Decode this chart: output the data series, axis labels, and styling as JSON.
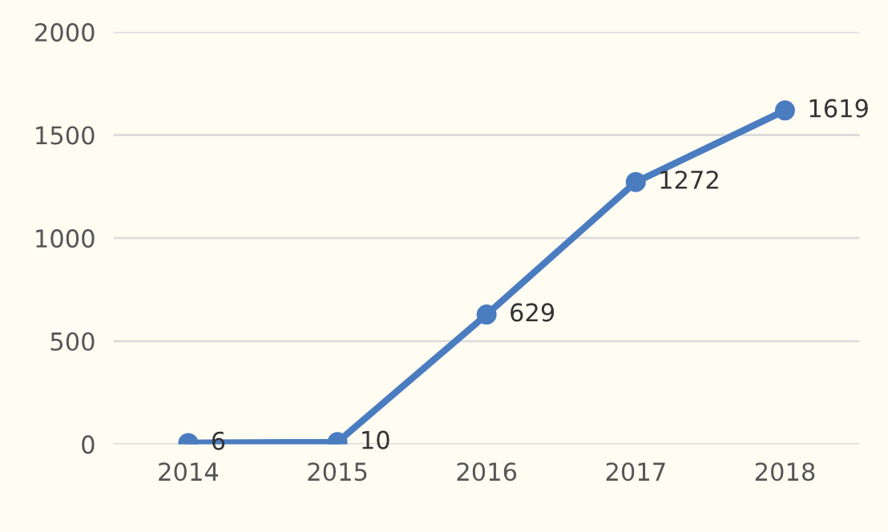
{
  "chart_data": {
    "type": "line",
    "categories": [
      "2014",
      "2015",
      "2016",
      "2017",
      "2018"
    ],
    "series": [
      {
        "color": "#4a7cc0",
        "values": [
          6,
          10,
          629,
          1272,
          1619
        ]
      }
    ],
    "ylim": [
      0,
      2000
    ],
    "yticks": [
      0,
      500,
      1000,
      1500,
      2000
    ],
    "grid": "y",
    "marker": "circle",
    "line_style": "solid",
    "data_labels": true
  }
}
